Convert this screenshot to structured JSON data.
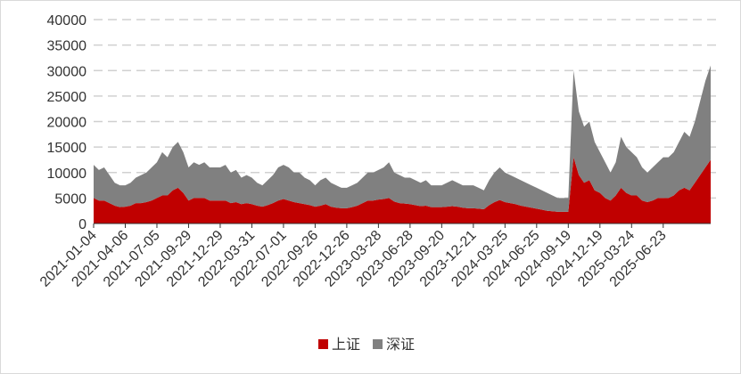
{
  "chart_data": {
    "type": "stacked_area",
    "categories": [
      "2021-01-04",
      null,
      null,
      null,
      null,
      null,
      "2021-04-06",
      null,
      null,
      null,
      null,
      null,
      "2021-07-05",
      null,
      null,
      null,
      null,
      null,
      "2021-09-29",
      null,
      null,
      null,
      null,
      null,
      "2021-12-29",
      null,
      null,
      null,
      null,
      null,
      "2022-03-31",
      null,
      null,
      null,
      null,
      null,
      "2022-07-01",
      null,
      null,
      null,
      null,
      null,
      "2022-09-26",
      null,
      null,
      null,
      null,
      null,
      "2022-12-26",
      null,
      null,
      null,
      null,
      null,
      "2023-03-28",
      null,
      null,
      null,
      null,
      null,
      "2023-06-28",
      null,
      null,
      null,
      null,
      null,
      "2023-09-20",
      null,
      null,
      null,
      null,
      null,
      "2023-12-21",
      null,
      null,
      null,
      null,
      null,
      "2024-03-25",
      null,
      null,
      null,
      null,
      null,
      "2024-06-25",
      null,
      null,
      null,
      null,
      null,
      "2024-09-19",
      null,
      null,
      null,
      null,
      null,
      "2024-12-19",
      null,
      null,
      null,
      null,
      null,
      "2025-03-24",
      null,
      null,
      null,
      null,
      null,
      "2025-06-23",
      null,
      null,
      null,
      null,
      null,
      null,
      null,
      null,
      null
    ],
    "series": [
      {
        "name": "上证",
        "color": "#c00000",
        "values": [
          5000,
          4500,
          4500,
          4000,
          3500,
          3200,
          3300,
          3500,
          4000,
          4000,
          4200,
          4500,
          5000,
          5500,
          5500,
          6500,
          7000,
          6000,
          4500,
          5000,
          5000,
          5000,
          4500,
          4500,
          4500,
          4500,
          4000,
          4200,
          3800,
          4000,
          3800,
          3500,
          3300,
          3600,
          4000,
          4500,
          4800,
          4500,
          4200,
          4000,
          3800,
          3600,
          3300,
          3500,
          3800,
          3300,
          3100,
          3000,
          3000,
          3200,
          3500,
          4000,
          4500,
          4500,
          4700,
          4800,
          5000,
          4300,
          4000,
          3900,
          3800,
          3600,
          3400,
          3500,
          3200,
          3200,
          3200,
          3300,
          3400,
          3300,
          3100,
          3000,
          3000,
          2900,
          2800,
          3600,
          4200,
          4600,
          4200,
          4000,
          3800,
          3500,
          3300,
          3100,
          2900,
          2700,
          2500,
          2400,
          2300,
          2300,
          2300,
          13000,
          9500,
          8000,
          8500,
          6500,
          6000,
          5000,
          4500,
          5500,
          7000,
          6000,
          5500,
          5500,
          4500,
          4200,
          4500,
          5000,
          5000,
          5000,
          5500,
          6500,
          7000,
          6500,
          8000,
          9500,
          11000,
          12500
        ]
      },
      {
        "name": "深证",
        "color": "#808080",
        "values": [
          6500,
          6000,
          6500,
          5500,
          4500,
          4300,
          4200,
          4500,
          5000,
          5500,
          5800,
          6500,
          7000,
          8500,
          7500,
          8500,
          9000,
          8000,
          6500,
          7000,
          6500,
          7000,
          6500,
          6500,
          6500,
          7000,
          6000,
          6300,
          5200,
          5500,
          5200,
          4500,
          4200,
          4900,
          5500,
          6500,
          6700,
          6500,
          5800,
          6000,
          5200,
          4900,
          4200,
          5000,
          5200,
          4700,
          4400,
          4000,
          4000,
          4300,
          4500,
          5000,
          5500,
          5500,
          5800,
          6200,
          7000,
          5700,
          5500,
          5100,
          5200,
          4900,
          4600,
          5000,
          4300,
          4300,
          4300,
          4700,
          5100,
          4700,
          4400,
          4500,
          4500,
          4100,
          3700,
          4900,
          5800,
          6400,
          5800,
          5500,
          5200,
          5000,
          4700,
          4400,
          4100,
          3800,
          3500,
          3100,
          2700,
          2700,
          2700,
          17000,
          12500,
          11000,
          11500,
          9500,
          8000,
          7000,
          5500,
          6500,
          10000,
          9000,
          8500,
          7500,
          6500,
          5800,
          6500,
          7000,
          8000,
          8000,
          8500,
          9500,
          11000,
          10500,
          12000,
          14500,
          17000,
          18500
        ]
      }
    ],
    "ylim": [
      0,
      40000
    ],
    "yticks": [
      0,
      5000,
      10000,
      15000,
      20000,
      25000,
      30000,
      35000,
      40000
    ],
    "grid": true,
    "legend": "bottom"
  }
}
